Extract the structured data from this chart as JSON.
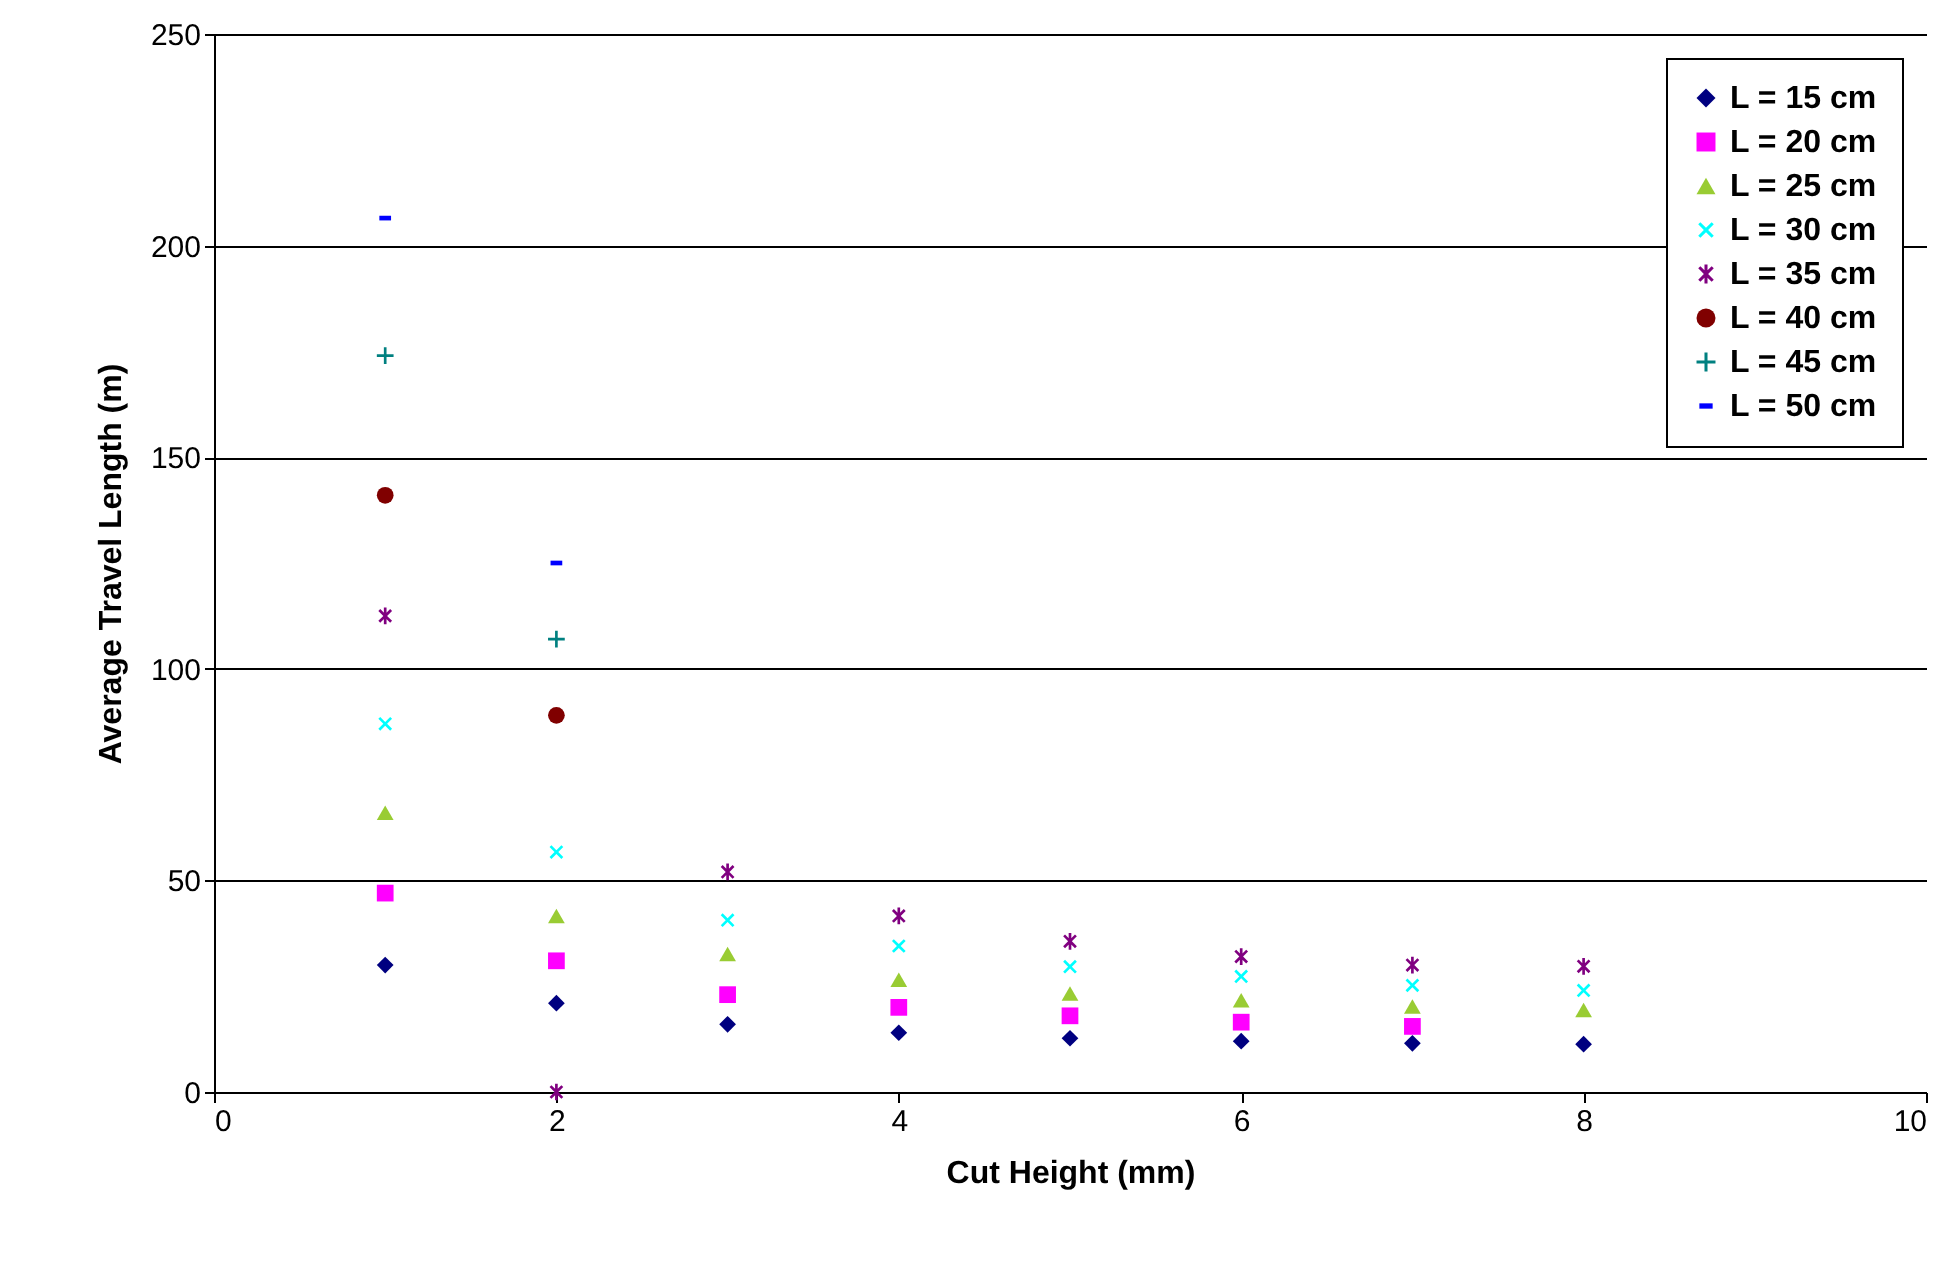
{
  "chart_data": {
    "type": "scatter",
    "xlabel": "Cut Height (mm)",
    "ylabel": "Average Travel Length (m)",
    "xlim": [
      0,
      10
    ],
    "xticks": [
      0,
      2,
      4,
      6,
      8,
      10
    ],
    "ylim": [
      0,
      250
    ],
    "yticks": [
      0,
      50,
      100,
      150,
      200,
      250
    ],
    "grid": "y",
    "legend": "top right",
    "series": [
      {
        "name": "L = 15 cm",
        "color": "#000080",
        "marker": "diamond",
        "x": [
          1,
          2,
          3,
          4,
          5,
          6,
          7,
          8
        ],
        "values": [
          30,
          21,
          16,
          14,
          12.7,
          12,
          11.5,
          11.3
        ]
      },
      {
        "name": "L = 20 cm",
        "color": "#ff00ff",
        "marker": "square",
        "x": [
          1,
          2,
          3,
          4,
          5,
          6,
          7
        ],
        "values": [
          47,
          31,
          23,
          20,
          18,
          16.5,
          15.5
        ]
      },
      {
        "name": "L = 25 cm",
        "color": "#99cc33",
        "marker": "triangle",
        "x": [
          1,
          2,
          3,
          4,
          5,
          6,
          7,
          8
        ],
        "values": [
          66,
          41.6,
          32.6,
          26.5,
          23.3,
          21.7,
          20.2,
          19.4
        ]
      },
      {
        "name": "L = 30 cm",
        "color": "#00ffff",
        "marker": "x",
        "x": [
          1,
          2,
          3,
          4,
          5,
          6,
          7,
          8
        ],
        "values": [
          87,
          56.7,
          40.6,
          34.5,
          29.6,
          27.3,
          25.2,
          24
        ]
      },
      {
        "name": "L = 35 cm",
        "color": "#800080",
        "marker": "star",
        "x": [
          1,
          2,
          3,
          4,
          5,
          6,
          7,
          8
        ],
        "values": [
          112.5,
          0,
          52,
          41.6,
          35.6,
          32,
          30,
          29.7
        ]
      },
      {
        "name": "L = 40 cm",
        "color": "#800000",
        "marker": "circle",
        "x": [
          1,
          2
        ],
        "values": [
          141,
          89
        ]
      },
      {
        "name": "L = 45 cm",
        "color": "#008080",
        "marker": "cross",
        "x": [
          1,
          2
        ],
        "values": [
          174,
          107
        ]
      },
      {
        "name": "L = 50 cm",
        "color": "#0000ff",
        "x": [
          1,
          2
        ],
        "values": [
          206.5,
          125
        ]
      }
    ]
  }
}
